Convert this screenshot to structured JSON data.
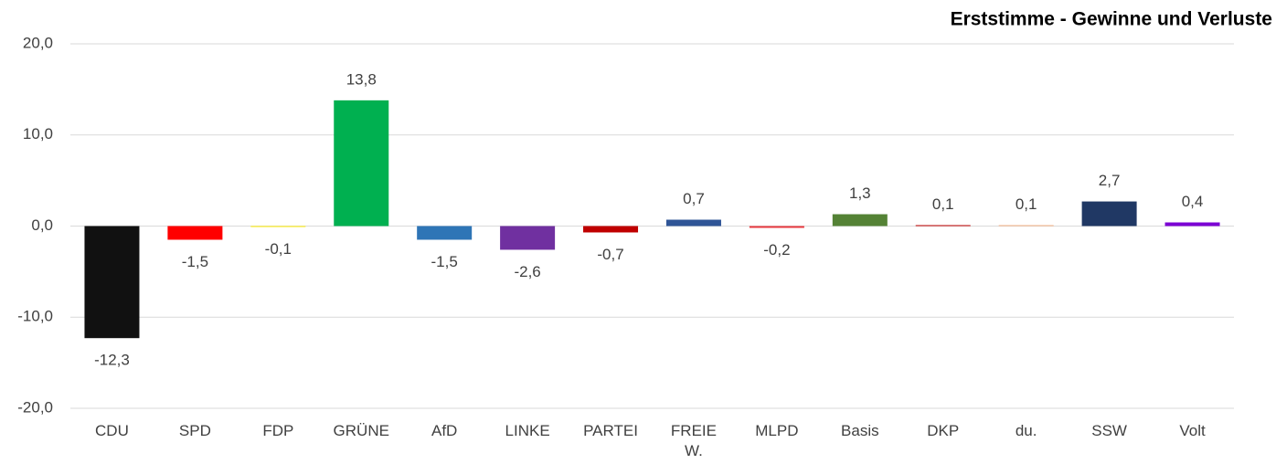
{
  "chart_data": {
    "type": "bar",
    "title": "Erststimme - Gewinne und Verluste",
    "categories": [
      "CDU",
      "SPD",
      "FDP",
      "GRÜNE",
      "AfD",
      "LINKE",
      "PARTEI",
      "FREIE W.",
      "MLPD",
      "Basis",
      "DKP",
      "du.",
      "SSW",
      "Volt"
    ],
    "values": [
      -12.3,
      -1.5,
      -0.1,
      13.8,
      -1.5,
      -2.6,
      -0.7,
      0.7,
      -0.2,
      1.3,
      0.1,
      0.1,
      2.7,
      0.4
    ],
    "value_labels": [
      "-12,3",
      "-1,5",
      "-0,1",
      "13,8",
      "-1,5",
      "-2,6",
      "-0,7",
      "0,7",
      "-0,2",
      "1,3",
      "0,1",
      "0,1",
      "2,7",
      "0,4"
    ],
    "colors": [
      "#111111",
      "#ff0000",
      "#ffed00",
      "#00b050",
      "#2e75b6",
      "#7030a0",
      "#c00000",
      "#2f5597",
      "#e8393f",
      "#548235",
      "#c00000",
      "#f4b183",
      "#203864",
      "#7b00d4"
    ],
    "ylim": [
      -20,
      20
    ],
    "yticks": [
      {
        "value": -20,
        "label": "-20,0"
      },
      {
        "value": -10,
        "label": "-10,0"
      },
      {
        "value": 0,
        "label": "0,0"
      },
      {
        "value": 10,
        "label": "10,0"
      },
      {
        "value": 20,
        "label": "20,0"
      }
    ],
    "grid": true
  }
}
